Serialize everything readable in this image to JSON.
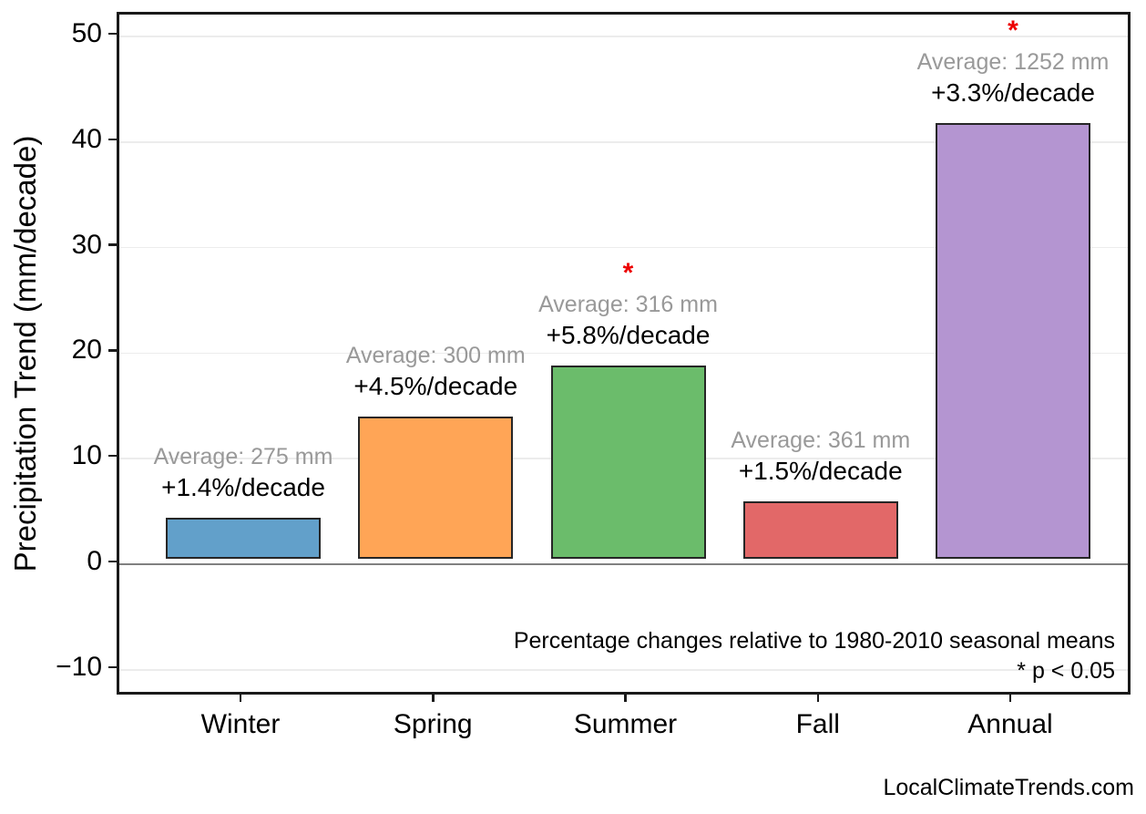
{
  "chart_data": {
    "type": "bar",
    "title": "",
    "xlabel": "",
    "ylabel": "Precipitation Trend (mm/decade)",
    "categories": [
      "Winter",
      "Spring",
      "Summer",
      "Fall",
      "Annual"
    ],
    "values": [
      3.85,
      13.5,
      18.3,
      5.4,
      41.3
    ],
    "avg_labels": [
      "Average: 275 mm",
      "Average: 300 mm",
      "Average: 316 mm",
      "Average: 361 mm",
      "Average: 1252 mm"
    ],
    "trend_labels": [
      "+1.4%/decade",
      "+4.5%/decade",
      "+5.8%/decade",
      "+1.5%/decade",
      "+3.3%/decade"
    ],
    "significant": [
      false,
      false,
      true,
      false,
      true
    ],
    "significance_marker": "*",
    "bar_colors": [
      "#62A0CA",
      "#FFA556",
      "#6BBC6B",
      "#E26868",
      "#B495D1"
    ],
    "bar_edge_color": "#262626",
    "avg_label_color": "#999999",
    "trend_label_color": "#000000",
    "significance_color": "#ed0000",
    "zero_line_color": "#808080",
    "grid_color": "#ececec",
    "grid": true,
    "legend": null,
    "yticks": [
      50,
      40,
      30,
      20,
      10,
      0,
      -10
    ],
    "ytick_labels": [
      "50",
      "40",
      "30",
      "20",
      "10",
      "0",
      "−10"
    ],
    "ylim": [
      -12.6,
      52.1
    ],
    "annotations": [
      "Percentage changes relative to 1980-2010 seasonal means",
      "* p < 0.05"
    ],
    "watermark": "LocalClimateTrends.com"
  }
}
